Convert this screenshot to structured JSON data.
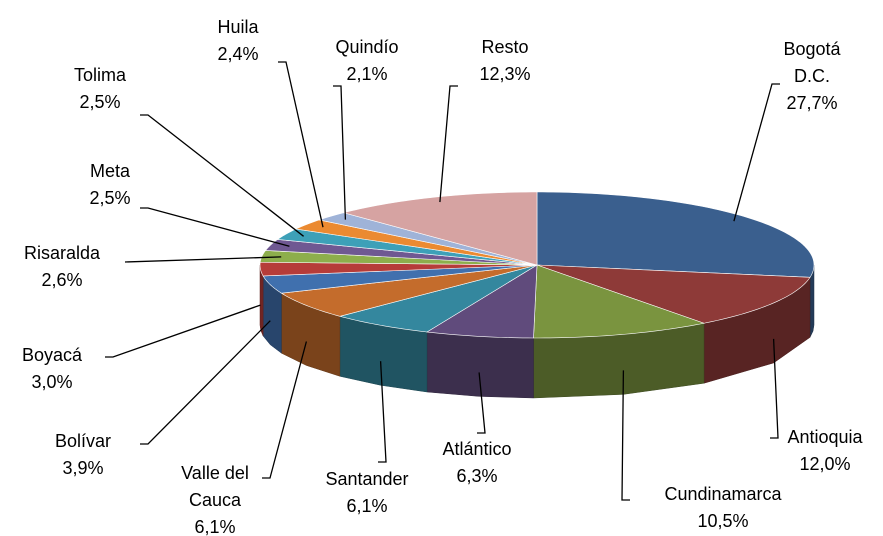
{
  "chart_data": {
    "type": "pie3d",
    "categories": [
      "Bogotá D.C.",
      "Antioquia",
      "Cundinamarca",
      "Atlántico",
      "Santander",
      "Valle del Cauca",
      "Bolívar",
      "Boyacá",
      "Risaralda",
      "Meta",
      "Tolima",
      "Huila",
      "Quindío",
      "Resto"
    ],
    "values": [
      27.7,
      12.0,
      10.5,
      6.3,
      6.1,
      6.1,
      3.9,
      3.0,
      2.6,
      2.5,
      2.5,
      2.4,
      2.1,
      12.3
    ],
    "value_labels": [
      "27,7%",
      "12,0%",
      "10,5%",
      "6,3%",
      "6,1%",
      "6,1%",
      "3,9%",
      "3,0%",
      "2,6%",
      "2,5%",
      "2,5%",
      "2,4%",
      "2,1%",
      "12,3%"
    ],
    "colors": [
      "#3A5F8E",
      "#8E3A38",
      "#7A943F",
      "#604B7C",
      "#34879E",
      "#C46C2C",
      "#4070AE",
      "#B63C39",
      "#8DAE4C",
      "#6F5892",
      "#3DA0B8",
      "#EB8A31",
      "#9FB3D8",
      "#D6A3A2"
    ]
  }
}
